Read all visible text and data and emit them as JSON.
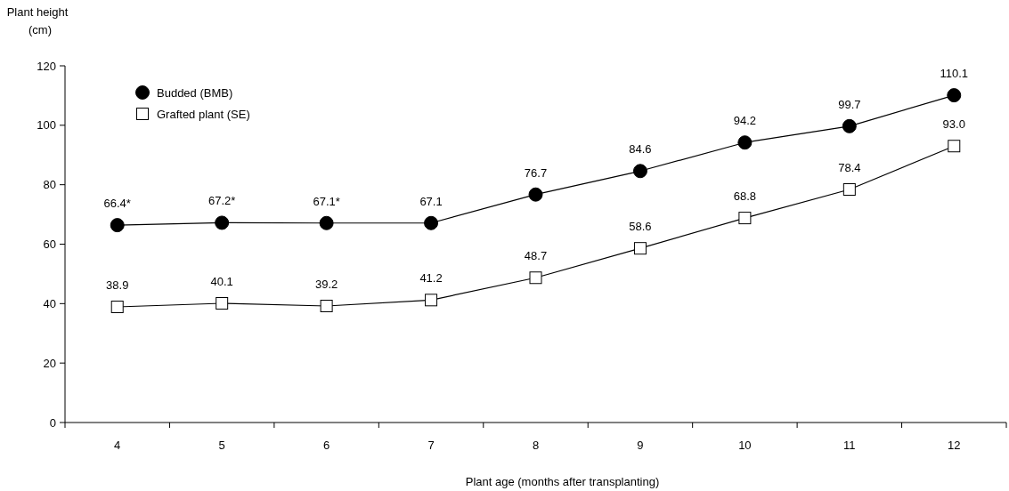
{
  "chart_data": {
    "type": "line",
    "xlabel": "Plant age (months after transplanting)",
    "ylabel": "Plant height\n(cm)",
    "categories": [
      "4",
      "5",
      "6",
      "7",
      "8",
      "9",
      "10",
      "11",
      "12"
    ],
    "ylim": [
      0,
      120
    ],
    "yticks": [
      0,
      20,
      40,
      60,
      80,
      100,
      120
    ],
    "legend": "top left",
    "grid": false,
    "series": [
      {
        "name": "Budded (BMB)",
        "color": "#000000",
        "marker": "circle",
        "values": [
          66.4,
          67.2,
          67.1,
          67.1,
          76.7,
          84.6,
          94.2,
          99.7,
          110.1
        ],
        "value_labels": [
          "66.4*",
          "67.2*",
          "67.1*",
          "67.1",
          "76.7",
          "84.6",
          "94.2",
          "99.7",
          "110.1"
        ]
      },
      {
        "name": "Grafted plant (SE)",
        "color": "#ffffff",
        "marker": "square",
        "values": [
          38.9,
          40.1,
          39.2,
          41.2,
          48.7,
          58.6,
          68.8,
          78.4,
          93.0
        ],
        "value_labels": [
          "38.9",
          "40.1",
          "39.2",
          "41.2",
          "48.7",
          "58.6",
          "68.8",
          "78.4",
          "93.0"
        ]
      }
    ]
  }
}
